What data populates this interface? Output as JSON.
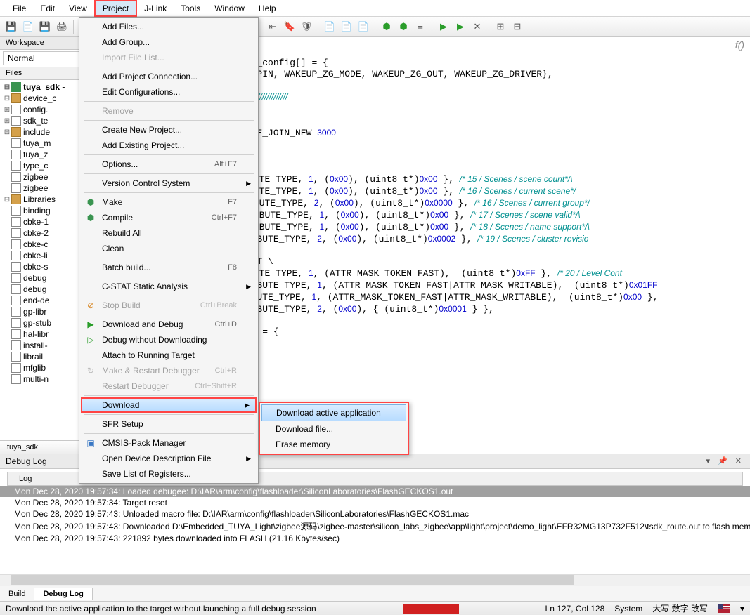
{
  "menubar": [
    "File",
    "Edit",
    "View",
    "Project",
    "J-Link",
    "Tools",
    "Window",
    "Help"
  ],
  "menubar_active_index": 3,
  "toolbar_groups": [
    [
      "save",
      "new",
      "save-all",
      "print"
    ],
    [
      "cut",
      "copy",
      "paste"
    ],
    [
      "undo",
      "redo"
    ],
    [
      "nav-back",
      "nav-fwd",
      "search"
    ],
    [
      "step1",
      "step2",
      "step3",
      "bookmark",
      "shield"
    ],
    [
      "doc1",
      "doc2",
      "doc3"
    ],
    [
      "compile",
      "make",
      "config"
    ],
    [
      "run",
      "debug",
      "stop"
    ],
    [
      "toggle",
      "exit"
    ]
  ],
  "workspace": {
    "title": "Workspace",
    "combo": "Normal",
    "files_header": "Files",
    "tab": "tuya_sdk",
    "tree": [
      {
        "lvl": 0,
        "exp": "⊟",
        "ico": "hex",
        "label": "tuya_sdk -",
        "bold": true
      },
      {
        "lvl": 1,
        "exp": "⊟",
        "ico": "folder",
        "label": "device_c"
      },
      {
        "lvl": 2,
        "exp": "⊞",
        "ico": "file",
        "label": "config."
      },
      {
        "lvl": 2,
        "exp": "⊞",
        "ico": "file",
        "label": "sdk_te"
      },
      {
        "lvl": 1,
        "exp": "⊟",
        "ico": "folder",
        "label": "include"
      },
      {
        "lvl": 2,
        "exp": "",
        "ico": "file",
        "label": "tuya_m"
      },
      {
        "lvl": 2,
        "exp": "",
        "ico": "file",
        "label": "tuya_z"
      },
      {
        "lvl": 2,
        "exp": "",
        "ico": "file",
        "label": "type_c"
      },
      {
        "lvl": 2,
        "exp": "",
        "ico": "file",
        "label": "zigbee"
      },
      {
        "lvl": 2,
        "exp": "",
        "ico": "file",
        "label": "zigbee"
      },
      {
        "lvl": 1,
        "exp": "⊟",
        "ico": "folder",
        "label": "Libraries"
      },
      {
        "lvl": 2,
        "exp": "",
        "ico": "file",
        "label": "binding"
      },
      {
        "lvl": 2,
        "exp": "",
        "ico": "file",
        "label": "cbke-1"
      },
      {
        "lvl": 2,
        "exp": "",
        "ico": "file",
        "label": "cbke-2"
      },
      {
        "lvl": 2,
        "exp": "",
        "ico": "file",
        "label": "cbke-c"
      },
      {
        "lvl": 2,
        "exp": "",
        "ico": "file",
        "label": "cbke-li"
      },
      {
        "lvl": 2,
        "exp": "",
        "ico": "file",
        "label": "cbke-s"
      },
      {
        "lvl": 2,
        "exp": "",
        "ico": "file",
        "label": "debug"
      },
      {
        "lvl": 2,
        "exp": "",
        "ico": "file",
        "label": "debug"
      },
      {
        "lvl": 2,
        "exp": "",
        "ico": "file",
        "label": "end-de"
      },
      {
        "lvl": 2,
        "exp": "",
        "ico": "file",
        "label": "gp-libr"
      },
      {
        "lvl": 2,
        "exp": "",
        "ico": "file",
        "label": "gp-stub"
      },
      {
        "lvl": 2,
        "exp": "",
        "ico": "file",
        "label": "hal-libr"
      },
      {
        "lvl": 2,
        "exp": "",
        "ico": "file",
        "label": "install-"
      },
      {
        "lvl": 2,
        "exp": "",
        "ico": "file",
        "label": "librail"
      },
      {
        "lvl": 2,
        "exp": "",
        "ico": "file",
        "label": "mfglib"
      },
      {
        "lvl": 2,
        "exp": "",
        "ico": "file",
        "label": "multi-n"
      }
    ]
  },
  "editor_tab": "",
  "code_lines": [
    {
      "t": "pio_config_t gpio_input_config[] = {"
    },
    {
      "t": ":UP_ZG_PORT, WAKEUP_ZG_PIN, WAKEUP_ZG_MODE, WAKEUP_ZG_OUT, WAKEUP_ZG_DRIVER},"
    },
    {
      "t": ""
    },
    {
      "t": "",
      "cm": "///////////////////////////////////////////////////////////////////"
    },
    {
      "t": ":EY_RESET_ID ",
      "num": "0"
    },
    {
      "t": ":ED_ZIGBEE_ST_ID ",
      "num": "0"
    },
    {
      "t": ":EY_PUSH_TIME_FOR_ZIGBEE_JOIN_NEW ",
      "num": "3000"
    },
    {
      "t": "",
      "pre": " ",
      "cm": "config"
    },
    {
      "t": ""
    },
    {
      "t": "_SCENE_ATTR_LIST \\"
    },
    {
      "t": "0000, ATTR_INT8U_ATTRIBUTE_TYPE, 1, (0x00), (uint8_t*)0x00 }, ",
      "cm": "/* 15 / Scenes / scene count*/\\"
    },
    {
      "t": "0001, ATTR_INT8U_ATTRIBUTE_TYPE, 1, (0x00), (uint8_t*)0x00 }, ",
      "cm": "/* 16 / Scenes / current scene*/"
    },
    {
      "t": "0002, ATTR_INT16U_ATTRIBUTE_TYPE, 2, (0x00), (uint8_t*)0x0000 }, ",
      "cm": "/* 16 / Scenes / current group*/"
    },
    {
      "t": "0003, ATTR_BOOLEAN_ATTRIBUTE_TYPE, 1, (0x00), (uint8_t*)0x00 }, ",
      "cm": "/* 17 / Scenes / scene valid*/\\"
    },
    {
      "t": "0004, ATTR_BITMAP8_ATTRIBUTE_TYPE, 1, (0x00), (uint8_t*)0x00 }, ",
      "cm": "/* 18 / Scenes / name support*/\\"
    },
    {
      "t": "FFFD, ATTR_INT16U_ATTRIBUTE_TYPE, 2, (0x00), (uint8_t*)0x0002 }, ",
      "cm": "/* 19 / Scenes / cluster revisio"
    },
    {
      "t": ""
    },
    {
      "t": "_LEVEL_CONTROL_ATTR_LIST \\"
    },
    {
      "t": "0000, ATTR_INT8U_ATTRIBUTE_TYPE, 1, (ATTR_MASK_TOKEN_FAST),  (uint8_t*)0xFF }, ",
      "cm": "/* 20 / Level Cont"
    },
    {
      "t": "FC00, ATTR_INT16U_ATTRIBUTE_TYPE, 1, (ATTR_MASK_TOKEN_FAST|ATTR_MASK_WRITABLE),  (uint8_t*)0x01FF"
    },
    {
      "t": "FC02, ATTR_INT8U_ATTRIBUTE_TYPE, 1, (ATTR_MASK_TOKEN_FAST|ATTR_MASK_WRITABLE),  (uint8_t*)0x00 },"
    },
    {
      "t": "FFFD, ATTR_INT16U_ATTRIBUTE_TYPE, 2, (0x00), { (uint8_t*)0x0001 } },"
    },
    {
      "t": ""
    },
    {
      "t": "r_t g_group_attr_list[] = {"
    },
    {
      "t": "P_ATTR_LIST"
    }
  ],
  "project_menu": [
    {
      "label": "Add Files..."
    },
    {
      "label": "Add Group..."
    },
    {
      "label": "Import File List...",
      "disabled": true
    },
    {
      "sep": true
    },
    {
      "label": "Add Project Connection..."
    },
    {
      "label": "Edit Configurations..."
    },
    {
      "sep": true
    },
    {
      "label": "Remove",
      "disabled": true
    },
    {
      "sep": true
    },
    {
      "label": "Create New Project..."
    },
    {
      "label": "Add Existing Project..."
    },
    {
      "sep": true
    },
    {
      "label": "Options...",
      "shortcut": "Alt+F7"
    },
    {
      "sep": true
    },
    {
      "label": "Version Control System",
      "arrow": true
    },
    {
      "sep": true
    },
    {
      "label": "Make",
      "shortcut": "F7",
      "icon": "hex"
    },
    {
      "label": "Compile",
      "shortcut": "Ctrl+F7",
      "icon": "hex"
    },
    {
      "label": "Rebuild All"
    },
    {
      "label": "Clean"
    },
    {
      "sep": true
    },
    {
      "label": "Batch build...",
      "shortcut": "F8"
    },
    {
      "sep": true
    },
    {
      "label": "C-STAT Static Analysis",
      "arrow": true
    },
    {
      "sep": true
    },
    {
      "label": "Stop Build",
      "shortcut": "Ctrl+Break",
      "disabled": true,
      "icon": "stop"
    },
    {
      "sep": true
    },
    {
      "label": "Download and Debug",
      "shortcut": "Ctrl+D",
      "icon": "play"
    },
    {
      "label": "Debug without Downloading",
      "icon": "play2"
    },
    {
      "label": "Attach to Running Target"
    },
    {
      "label": "Make & Restart Debugger",
      "shortcut": "Ctrl+R",
      "disabled": true,
      "icon": "restart"
    },
    {
      "label": "Restart Debugger",
      "shortcut": "Ctrl+Shift+R",
      "disabled": true
    },
    {
      "sep": true
    },
    {
      "label": "Download",
      "arrow": true,
      "hl": true
    },
    {
      "sep": true
    },
    {
      "label": "SFR Setup"
    },
    {
      "sep": true
    },
    {
      "label": "CMSIS-Pack Manager",
      "icon": "pack"
    },
    {
      "label": "Open Device Description File",
      "arrow": true
    },
    {
      "label": "Save List of Registers..."
    }
  ],
  "download_submenu": [
    {
      "label": "Download active application",
      "hl": true
    },
    {
      "label": "Download file..."
    },
    {
      "label": "Erase memory"
    }
  ],
  "debuglog": {
    "title": "Debug Log",
    "col": "Log",
    "lines": [
      {
        "t": "Mon Dec 28, 2020 19:57:34: Loaded debugee: D:\\IAR\\arm\\config\\flashloader\\SiliconLaboratories\\FlashGECKOS1.out",
        "sel": true
      },
      {
        "t": "Mon Dec 28, 2020 19:57:34: Target reset"
      },
      {
        "t": "Mon Dec 28, 2020 19:57:43: Unloaded macro file: D:\\IAR\\arm\\config\\flashloader\\SiliconLaboratories\\FlashGECKOS1.mac"
      },
      {
        "t": "Mon Dec 28, 2020 19:57:43: Downloaded D:\\Embedded_TUYA_Light\\zigbee源码\\zigbee-master\\silicon_labs_zigbee\\app\\light\\project\\demo_light\\EFR32MG13P732F512\\tsdk_route.out to flash memory."
      },
      {
        "t": "Mon Dec 28, 2020 19:57:43: 221892 bytes downloaded into FLASH (21.16 Kbytes/sec)"
      }
    ]
  },
  "bottom_tabs": [
    "Build",
    "Debug Log"
  ],
  "bottom_active": 1,
  "statusbar": {
    "left": "Download the active application to the target without launching a full debug session",
    "pos": "Ln 127, Col 128",
    "system": "System",
    "ime": "大写 数字 改写"
  }
}
